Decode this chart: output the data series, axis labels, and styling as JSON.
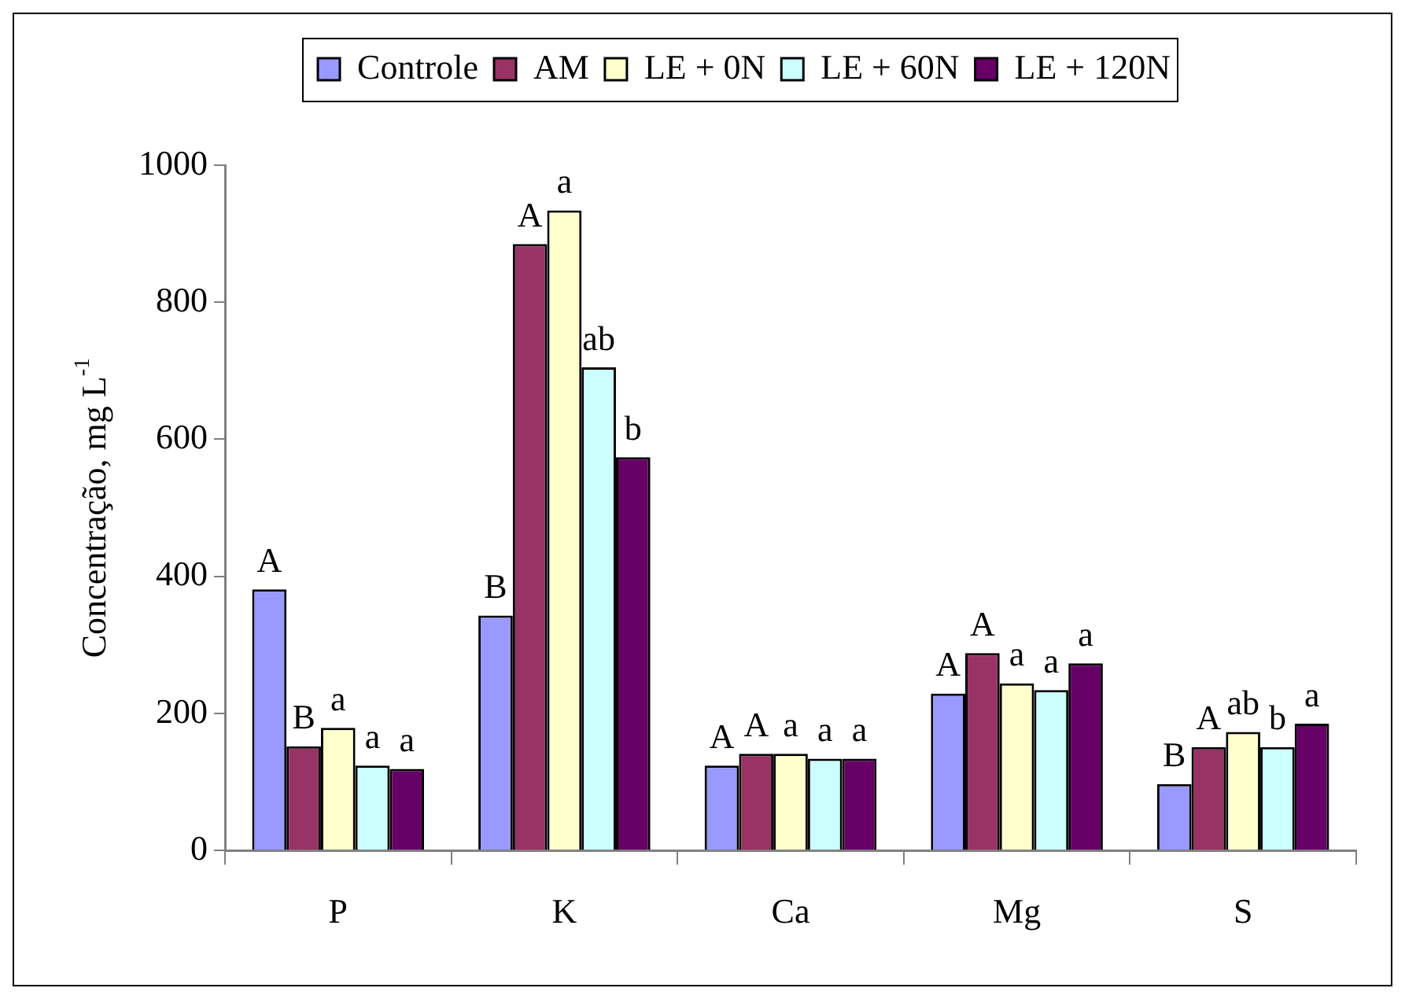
{
  "chart_data": {
    "type": "bar",
    "ylabel": "Concentração, mg L$^{-1}$",
    "categories": [
      "P",
      "K",
      "Ca",
      "Mg",
      "S"
    ],
    "series": [
      {
        "name": "Controle",
        "color": "#9999ff",
        "values": [
          381,
          343,
          124,
          229,
          97
        ],
        "value_labels": [
          "A",
          "B",
          "A",
          "A",
          "B"
        ]
      },
      {
        "name": "AM",
        "color": "#993366",
        "values": [
          152,
          885,
          141,
          288,
          151
        ],
        "value_labels": [
          "B",
          "A",
          "A",
          "A",
          "A"
        ]
      },
      {
        "name": "LE + 0N",
        "color": "#ffffcc",
        "values": [
          179,
          934,
          141,
          244,
          173
        ],
        "value_labels": [
          "a",
          "a",
          "a",
          "a",
          "ab"
        ]
      },
      {
        "name": "LE + 60N",
        "color": "#ccffff",
        "values": [
          124,
          705,
          134,
          234,
          151
        ],
        "value_labels": [
          "a",
          "ab",
          "a",
          "a",
          "b"
        ]
      },
      {
        "name": "LE + 120N",
        "color": "#660066",
        "values": [
          119,
          574,
          134,
          273,
          185
        ],
        "value_labels": [
          "a",
          "b",
          "a",
          "a",
          "a"
        ]
      }
    ],
    "ylim": [
      0,
      1000
    ],
    "yticks": [
      0,
      200,
      400,
      600,
      800,
      1000
    ],
    "grid": false,
    "legend": "top"
  }
}
